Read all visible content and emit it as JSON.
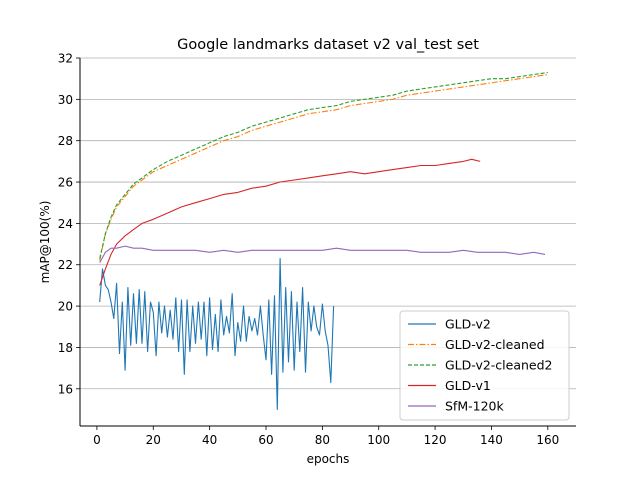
{
  "chart_data": {
    "type": "line",
    "title": "Google landmarks dataset v2 val_test set",
    "xlabel": "epochs",
    "ylabel": "mAP@100(%)",
    "xlim": [
      -6,
      170
    ],
    "ylim": [
      14.2,
      32
    ],
    "xticks": [
      "0",
      "20",
      "40",
      "60",
      "80",
      "100",
      "120",
      "140",
      "160"
    ],
    "yticks": [
      "16",
      "18",
      "20",
      "22",
      "24",
      "26",
      "28",
      "30",
      "32"
    ],
    "grid": "horizontal",
    "legend_position": "lower-right",
    "series": [
      {
        "name": "GLD-v2",
        "color": "#1f77b4",
        "dash": "",
        "x": [
          1,
          2,
          3,
          4,
          5,
          6,
          7,
          8,
          9,
          10,
          11,
          12,
          13,
          14,
          15,
          16,
          17,
          18,
          19,
          20,
          21,
          22,
          23,
          24,
          25,
          26,
          27,
          28,
          29,
          30,
          31,
          32,
          33,
          34,
          35,
          36,
          37,
          38,
          39,
          40,
          41,
          42,
          43,
          44,
          45,
          46,
          47,
          48,
          49,
          50,
          51,
          52,
          53,
          54,
          55,
          56,
          57,
          58,
          59,
          60,
          61,
          62,
          63,
          64,
          65,
          66,
          67,
          68,
          69,
          70,
          71,
          72,
          73,
          74,
          75,
          76,
          77,
          78,
          79,
          80,
          81,
          82,
          83,
          84
        ],
        "values": [
          20.2,
          21.8,
          21.0,
          20.8,
          20.2,
          19.4,
          21.1,
          17.7,
          20.2,
          16.9,
          20.9,
          18.1,
          20.6,
          18.2,
          20.8,
          18.2,
          20.7,
          17.8,
          20.2,
          19.7,
          17.6,
          20.2,
          18.7,
          20.0,
          18.5,
          19.8,
          18.4,
          20.4,
          17.8,
          20.3,
          16.7,
          20.3,
          17.8,
          20.0,
          18.2,
          20.2,
          18.4,
          20.2,
          17.6,
          20.4,
          17.9,
          19.6,
          17.8,
          20.3,
          18.6,
          19.5,
          18.7,
          20.6,
          17.6,
          19.2,
          18.3,
          20.0,
          18.3,
          19.5,
          18.8,
          19.4,
          18.6,
          20.0,
          18.6,
          17.4,
          20.3,
          16.7,
          20.5,
          15.0,
          22.3,
          16.8,
          20.9,
          17.3,
          20.7,
          16.9,
          20.2,
          17.8,
          20.9,
          16.8,
          20.2,
          18.8,
          20.0,
          19.0,
          18.6,
          20.1,
          18.8,
          18.1,
          16.3,
          20.0
        ]
      },
      {
        "name": "GLD-v2-cleaned",
        "color": "#ff7f0e",
        "dash": "6,2,1.5,2",
        "x": [
          1,
          3,
          5,
          7,
          10,
          13,
          16,
          20,
          25,
          30,
          35,
          40,
          45,
          50,
          55,
          60,
          65,
          70,
          75,
          80,
          85,
          90,
          95,
          100,
          105,
          110,
          115,
          120,
          125,
          130,
          135,
          140,
          145,
          150,
          155,
          160
        ],
        "values": [
          22.2,
          23.5,
          24.2,
          24.8,
          25.3,
          25.8,
          26.1,
          26.5,
          26.8,
          27.1,
          27.4,
          27.7,
          28.0,
          28.2,
          28.5,
          28.7,
          28.9,
          29.1,
          29.3,
          29.4,
          29.5,
          29.7,
          29.8,
          29.9,
          30.0,
          30.2,
          30.3,
          30.4,
          30.5,
          30.6,
          30.7,
          30.8,
          30.9,
          31.0,
          31.1,
          31.2
        ]
      },
      {
        "name": "GLD-v2-cleaned2",
        "color": "#2ca02c",
        "dash": "4,2",
        "x": [
          1,
          3,
          5,
          7,
          10,
          13,
          16,
          20,
          25,
          30,
          35,
          40,
          45,
          50,
          55,
          60,
          65,
          70,
          75,
          80,
          85,
          90,
          95,
          100,
          105,
          110,
          115,
          120,
          125,
          130,
          135,
          140,
          145,
          150,
          155,
          160
        ],
        "values": [
          22.3,
          23.5,
          24.3,
          24.9,
          25.4,
          25.9,
          26.2,
          26.6,
          27.0,
          27.3,
          27.6,
          27.9,
          28.2,
          28.4,
          28.7,
          28.9,
          29.1,
          29.3,
          29.5,
          29.6,
          29.7,
          29.9,
          30.0,
          30.1,
          30.2,
          30.4,
          30.5,
          30.6,
          30.7,
          30.8,
          30.9,
          31.0,
          31.0,
          31.1,
          31.2,
          31.3
        ]
      },
      {
        "name": "GLD-v1",
        "color": "#d62728",
        "dash": "",
        "x": [
          1,
          3,
          5,
          7,
          10,
          13,
          16,
          20,
          25,
          30,
          35,
          40,
          45,
          50,
          55,
          60,
          65,
          70,
          75,
          80,
          85,
          90,
          95,
          100,
          105,
          110,
          115,
          120,
          125,
          130,
          133,
          136
        ],
        "values": [
          21.0,
          21.8,
          22.5,
          23.0,
          23.4,
          23.7,
          24.0,
          24.2,
          24.5,
          24.8,
          25.0,
          25.2,
          25.4,
          25.5,
          25.7,
          25.8,
          26.0,
          26.1,
          26.2,
          26.3,
          26.4,
          26.5,
          26.4,
          26.5,
          26.6,
          26.7,
          26.8,
          26.8,
          26.9,
          27.0,
          27.1,
          27.0
        ]
      },
      {
        "name": "SfM-120k",
        "color": "#9467bd",
        "dash": "",
        "x": [
          1,
          3,
          5,
          7,
          10,
          13,
          16,
          20,
          25,
          30,
          35,
          40,
          45,
          50,
          55,
          60,
          65,
          70,
          75,
          80,
          85,
          90,
          95,
          100,
          105,
          110,
          115,
          120,
          125,
          130,
          135,
          140,
          145,
          150,
          155,
          159
        ],
        "values": [
          22.1,
          22.6,
          22.8,
          22.8,
          22.9,
          22.8,
          22.8,
          22.7,
          22.7,
          22.7,
          22.7,
          22.6,
          22.7,
          22.6,
          22.7,
          22.7,
          22.7,
          22.7,
          22.7,
          22.7,
          22.8,
          22.7,
          22.7,
          22.7,
          22.7,
          22.7,
          22.6,
          22.6,
          22.6,
          22.7,
          22.6,
          22.6,
          22.6,
          22.5,
          22.6,
          22.5
        ]
      }
    ]
  }
}
